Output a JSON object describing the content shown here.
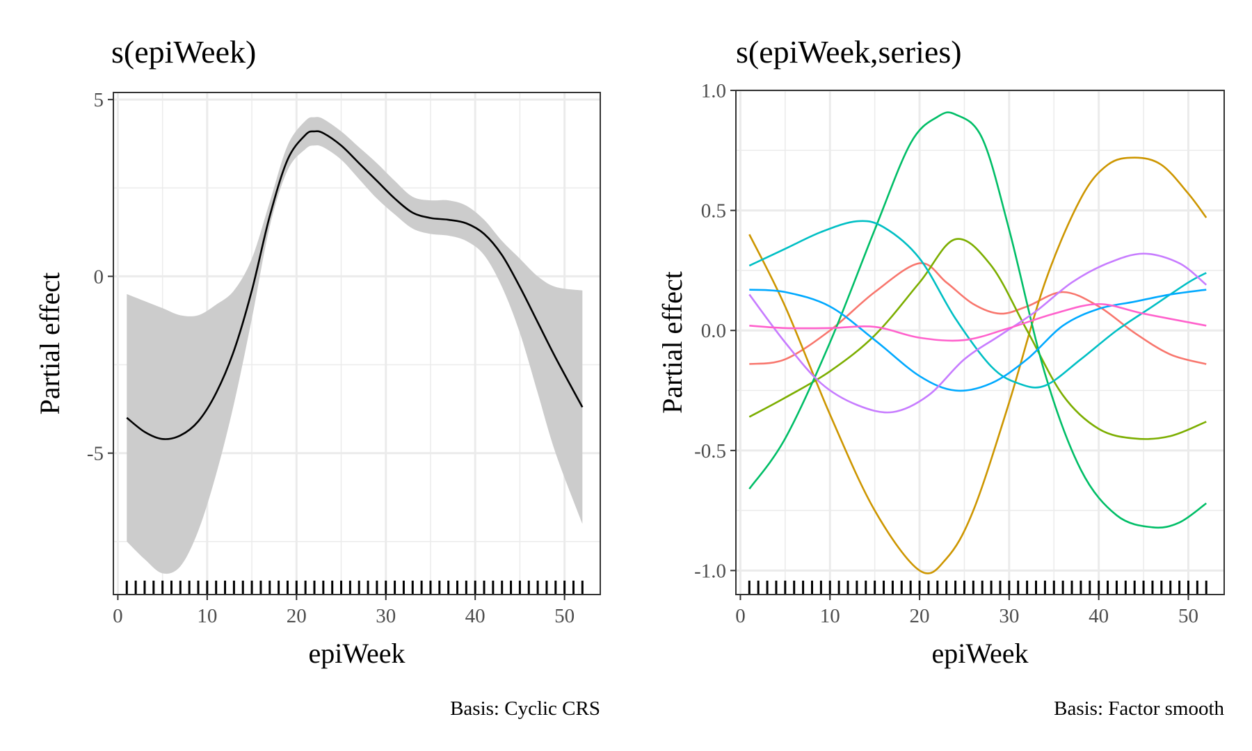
{
  "chart_data": [
    {
      "type": "line",
      "title": "s(epiWeek)",
      "xlabel": "epiWeek",
      "ylabel": "Partial effect",
      "caption": "Basis: Cyclic CRS",
      "xlim": [
        -0.5,
        54
      ],
      "ylim": [
        -9,
        5.2
      ],
      "xticks": [
        0,
        10,
        20,
        30,
        40,
        50
      ],
      "xtick_labels": [
        "0",
        "10",
        "20",
        "30",
        "40",
        "50"
      ],
      "yticks": [
        -5,
        0,
        5
      ],
      "ytick_labels": [
        "-5",
        "0",
        "5"
      ],
      "grid": true,
      "rug_x": [
        1,
        2,
        3,
        4,
        5,
        6,
        7,
        8,
        9,
        10,
        11,
        12,
        13,
        14,
        15,
        16,
        17,
        18,
        19,
        20,
        21,
        22,
        23,
        24,
        25,
        26,
        27,
        28,
        29,
        30,
        31,
        32,
        33,
        34,
        35,
        36,
        37,
        38,
        39,
        40,
        41,
        42,
        43,
        44,
        45,
        46,
        47,
        48,
        49,
        50,
        51,
        52
      ],
      "series": [
        {
          "color": "#000000",
          "ribbon_color": "#cccccc",
          "x": [
            1,
            3,
            5,
            7,
            9,
            11,
            13,
            15,
            17,
            19,
            21,
            22,
            23,
            25,
            27,
            29,
            31,
            33,
            35,
            37,
            39,
            41,
            43,
            45,
            47,
            49,
            52
          ],
          "y": [
            -4.0,
            -4.4,
            -4.6,
            -4.5,
            -4.1,
            -3.3,
            -2.1,
            -0.4,
            1.7,
            3.3,
            4.0,
            4.1,
            4.05,
            3.7,
            3.2,
            2.7,
            2.2,
            1.8,
            1.65,
            1.6,
            1.5,
            1.2,
            0.6,
            -0.3,
            -1.3,
            -2.3,
            -3.7
          ],
          "lower": [
            -7.5,
            -8.0,
            -8.4,
            -8.2,
            -7.2,
            -5.6,
            -3.6,
            -1.2,
            1.4,
            3.0,
            3.6,
            3.7,
            3.65,
            3.3,
            2.75,
            2.2,
            1.75,
            1.35,
            1.2,
            1.15,
            1.0,
            0.6,
            -0.3,
            -1.6,
            -3.3,
            -5.0,
            -7.0
          ],
          "upper": [
            -0.5,
            -0.7,
            -0.9,
            -1.1,
            -1.1,
            -0.8,
            -0.4,
            0.5,
            2.1,
            3.7,
            4.4,
            4.5,
            4.45,
            4.1,
            3.65,
            3.2,
            2.7,
            2.25,
            2.15,
            2.15,
            2.0,
            1.6,
            1.0,
            0.5,
            0.0,
            -0.3,
            -0.4
          ]
        }
      ]
    },
    {
      "type": "line",
      "title": "s(epiWeek,series)",
      "xlabel": "epiWeek",
      "ylabel": "Partial effect",
      "caption": "Basis: Factor smooth",
      "xlim": [
        -0.5,
        54
      ],
      "ylim": [
        -1.1,
        1.0
      ],
      "xticks": [
        0,
        10,
        20,
        30,
        40,
        50
      ],
      "xtick_labels": [
        "0",
        "10",
        "20",
        "30",
        "40",
        "50"
      ],
      "yticks": [
        -1.0,
        -0.5,
        0.0,
        0.5,
        1.0
      ],
      "ytick_labels": [
        "-1.0",
        "-0.5",
        "0.0",
        "0.5",
        "1.0"
      ],
      "grid": true,
      "rug_x": [
        1,
        2,
        3,
        4,
        5,
        6,
        7,
        8,
        9,
        10,
        11,
        12,
        13,
        14,
        15,
        16,
        17,
        18,
        19,
        20,
        21,
        22,
        23,
        24,
        25,
        26,
        27,
        28,
        29,
        30,
        31,
        32,
        33,
        34,
        35,
        36,
        37,
        38,
        39,
        40,
        41,
        42,
        43,
        44,
        45,
        46,
        47,
        48,
        49,
        50,
        51,
        52
      ],
      "series": [
        {
          "color": "#F8766D",
          "x": [
            1,
            5,
            10,
            15,
            20,
            23,
            26,
            29,
            32,
            36,
            40,
            44,
            48,
            52
          ],
          "y": [
            -0.14,
            -0.12,
            0.0,
            0.16,
            0.28,
            0.2,
            0.11,
            0.07,
            0.1,
            0.16,
            0.1,
            -0.01,
            -0.1,
            -0.14
          ]
        },
        {
          "color": "#CD9600",
          "x": [
            1,
            5,
            10,
            15,
            20,
            23,
            26,
            30,
            34,
            38,
            41,
            44,
            47,
            50,
            52
          ],
          "y": [
            0.4,
            0.1,
            -0.35,
            -0.75,
            -1.0,
            -0.95,
            -0.75,
            -0.3,
            0.2,
            0.55,
            0.69,
            0.72,
            0.69,
            0.57,
            0.47
          ]
        },
        {
          "color": "#7CAE00",
          "x": [
            1,
            5,
            10,
            15,
            20,
            24,
            28,
            32,
            36,
            40,
            44,
            48,
            52
          ],
          "y": [
            -0.36,
            -0.28,
            -0.17,
            -0.02,
            0.2,
            0.38,
            0.27,
            0.0,
            -0.27,
            -0.41,
            -0.45,
            -0.44,
            -0.38
          ]
        },
        {
          "color": "#00BE67",
          "x": [
            1,
            5,
            10,
            15,
            19,
            22,
            24,
            27,
            30,
            34,
            38,
            42,
            46,
            49,
            52
          ],
          "y": [
            -0.66,
            -0.45,
            -0.05,
            0.42,
            0.78,
            0.89,
            0.9,
            0.8,
            0.42,
            -0.18,
            -0.58,
            -0.77,
            -0.82,
            -0.8,
            -0.72
          ]
        },
        {
          "color": "#00BFC4",
          "x": [
            1,
            5,
            9,
            13,
            16,
            20,
            24,
            28,
            31,
            34,
            38,
            42,
            46,
            50,
            52
          ],
          "y": [
            0.27,
            0.34,
            0.41,
            0.455,
            0.43,
            0.3,
            0.05,
            -0.15,
            -0.22,
            -0.23,
            -0.12,
            0.0,
            0.1,
            0.2,
            0.24
          ]
        },
        {
          "color": "#00A9FF",
          "x": [
            1,
            5,
            10,
            15,
            20,
            24,
            28,
            32,
            36,
            40,
            44,
            48,
            52
          ],
          "y": [
            0.17,
            0.16,
            0.1,
            -0.04,
            -0.19,
            -0.25,
            -0.22,
            -0.12,
            0.02,
            0.09,
            0.12,
            0.15,
            0.17
          ]
        },
        {
          "color": "#C77CFF",
          "x": [
            1,
            5,
            9,
            13,
            17,
            21,
            25,
            29,
            33,
            37,
            41,
            45,
            49,
            52
          ],
          "y": [
            0.15,
            -0.05,
            -0.22,
            -0.31,
            -0.34,
            -0.27,
            -0.12,
            -0.02,
            0.08,
            0.2,
            0.28,
            0.32,
            0.28,
            0.19
          ]
        },
        {
          "color": "#FF61CC",
          "x": [
            1,
            5,
            10,
            15,
            20,
            25,
            30,
            35,
            40,
            45,
            52
          ],
          "y": [
            0.02,
            0.01,
            0.01,
            0.015,
            -0.03,
            -0.04,
            0.01,
            0.07,
            0.11,
            0.07,
            0.02
          ]
        }
      ]
    }
  ]
}
